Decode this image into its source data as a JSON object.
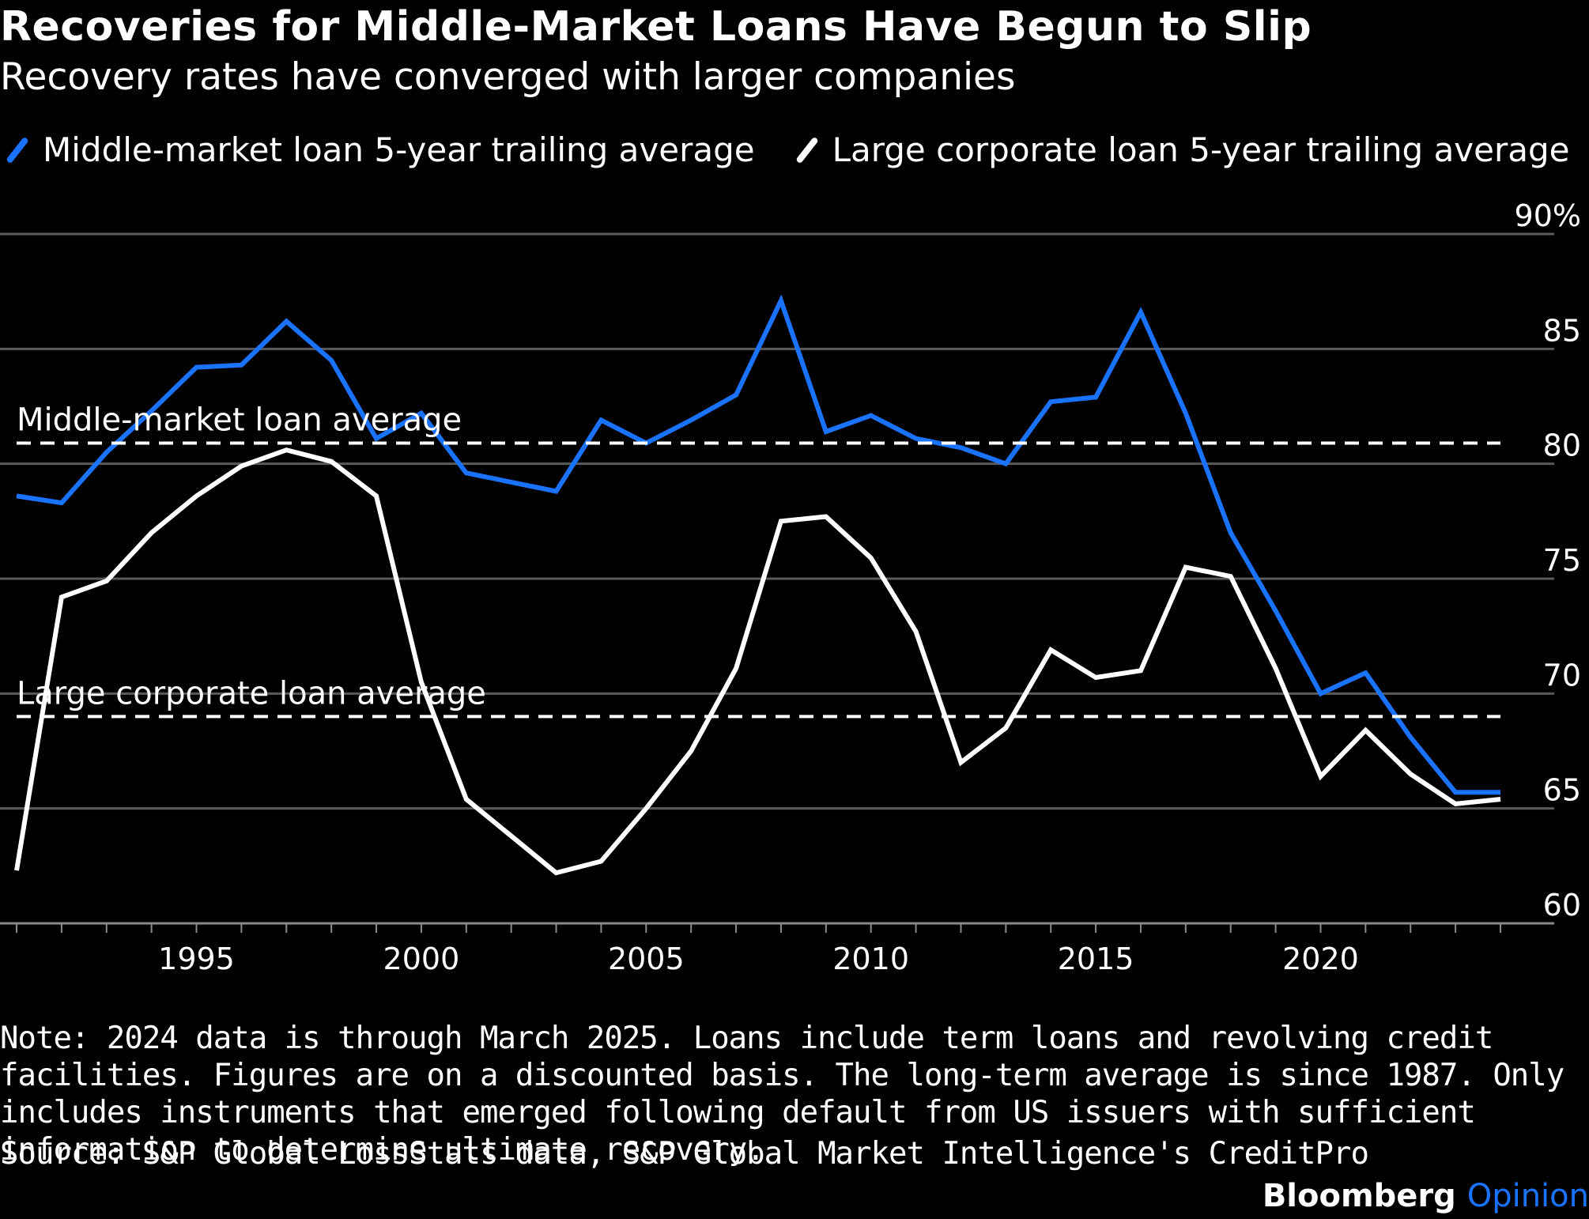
{
  "title": "Recoveries for Middle-Market Loans Have Begun to Slip",
  "subtitle": "Recovery rates have converged with larger companies",
  "legend": [
    {
      "label": "Middle-market loan 5-year trailing average",
      "color": "#1a73ff"
    },
    {
      "label": "Large corporate loan 5-year trailing average",
      "color": "#ffffff"
    }
  ],
  "note": "Note: 2024 data is through March 2025. Loans include term loans and revolving credit facilities. Figures are on a discounted basis. The long-term average is since 1987. Only includes instruments that emerged following default from US issuers with sufficient information to determine ultimate recovery.",
  "source": "Source: S&P Global LossStats data, S&P Global Market Intelligence's CreditPro",
  "brand": {
    "name": "Bloomberg",
    "suffix": "Opinion"
  },
  "chart_data": {
    "type": "line",
    "title": "Recoveries for Middle-Market Loans Have Begun to Slip",
    "subtitle": "Recovery rates have converged with larger companies",
    "x": [
      1991,
      1992,
      1993,
      1994,
      1995,
      1996,
      1997,
      1998,
      1999,
      2000,
      2001,
      2002,
      2003,
      2004,
      2005,
      2006,
      2007,
      2008,
      2009,
      2010,
      2011,
      2012,
      2013,
      2014,
      2015,
      2016,
      2017,
      2018,
      2019,
      2020,
      2021,
      2022,
      2023,
      2024
    ],
    "series": [
      {
        "name": "Middle-market loan 5-year trailing average",
        "color": "#1a73ff",
        "values": [
          78.6,
          78.3,
          80.5,
          82.3,
          84.2,
          84.3,
          86.2,
          84.5,
          81.1,
          82.2,
          79.6,
          79.2,
          78.8,
          81.9,
          80.9,
          81.9,
          83.0,
          87.1,
          81.4,
          82.1,
          81.1,
          80.7,
          80.0,
          82.7,
          82.9,
          86.6,
          82.2,
          77.0,
          73.6,
          70.0,
          70.9,
          68.1,
          65.7,
          65.7
        ]
      },
      {
        "name": "Large corporate loan 5-year trailing average",
        "color": "#ffffff",
        "values": [
          62.3,
          74.2,
          74.9,
          77.0,
          78.6,
          79.9,
          80.6,
          80.1,
          78.6,
          70.5,
          65.4,
          63.8,
          62.2,
          62.7,
          65.0,
          67.5,
          71.1,
          77.5,
          77.7,
          75.9,
          72.7,
          67.0,
          68.5,
          71.9,
          70.7,
          71.0,
          75.5,
          75.1,
          71.1,
          66.4,
          68.4,
          66.5,
          65.2,
          65.4
        ]
      }
    ],
    "reference_lines": [
      {
        "label": "Middle-market loan average",
        "value": 80.9
      },
      {
        "label": "Large corporate loan average",
        "value": 69.0
      }
    ],
    "x_ticks": [
      1995,
      2000,
      2005,
      2010,
      2015,
      2020
    ],
    "y_ticks": [
      60,
      65,
      70,
      75,
      80,
      85,
      90
    ],
    "y_tick_labels": [
      "60",
      "65",
      "70",
      "75",
      "80",
      "85",
      "90%"
    ],
    "xlim": [
      1991,
      2024
    ],
    "ylim": [
      60,
      90
    ],
    "grid": true,
    "legend_position": "top-left"
  }
}
